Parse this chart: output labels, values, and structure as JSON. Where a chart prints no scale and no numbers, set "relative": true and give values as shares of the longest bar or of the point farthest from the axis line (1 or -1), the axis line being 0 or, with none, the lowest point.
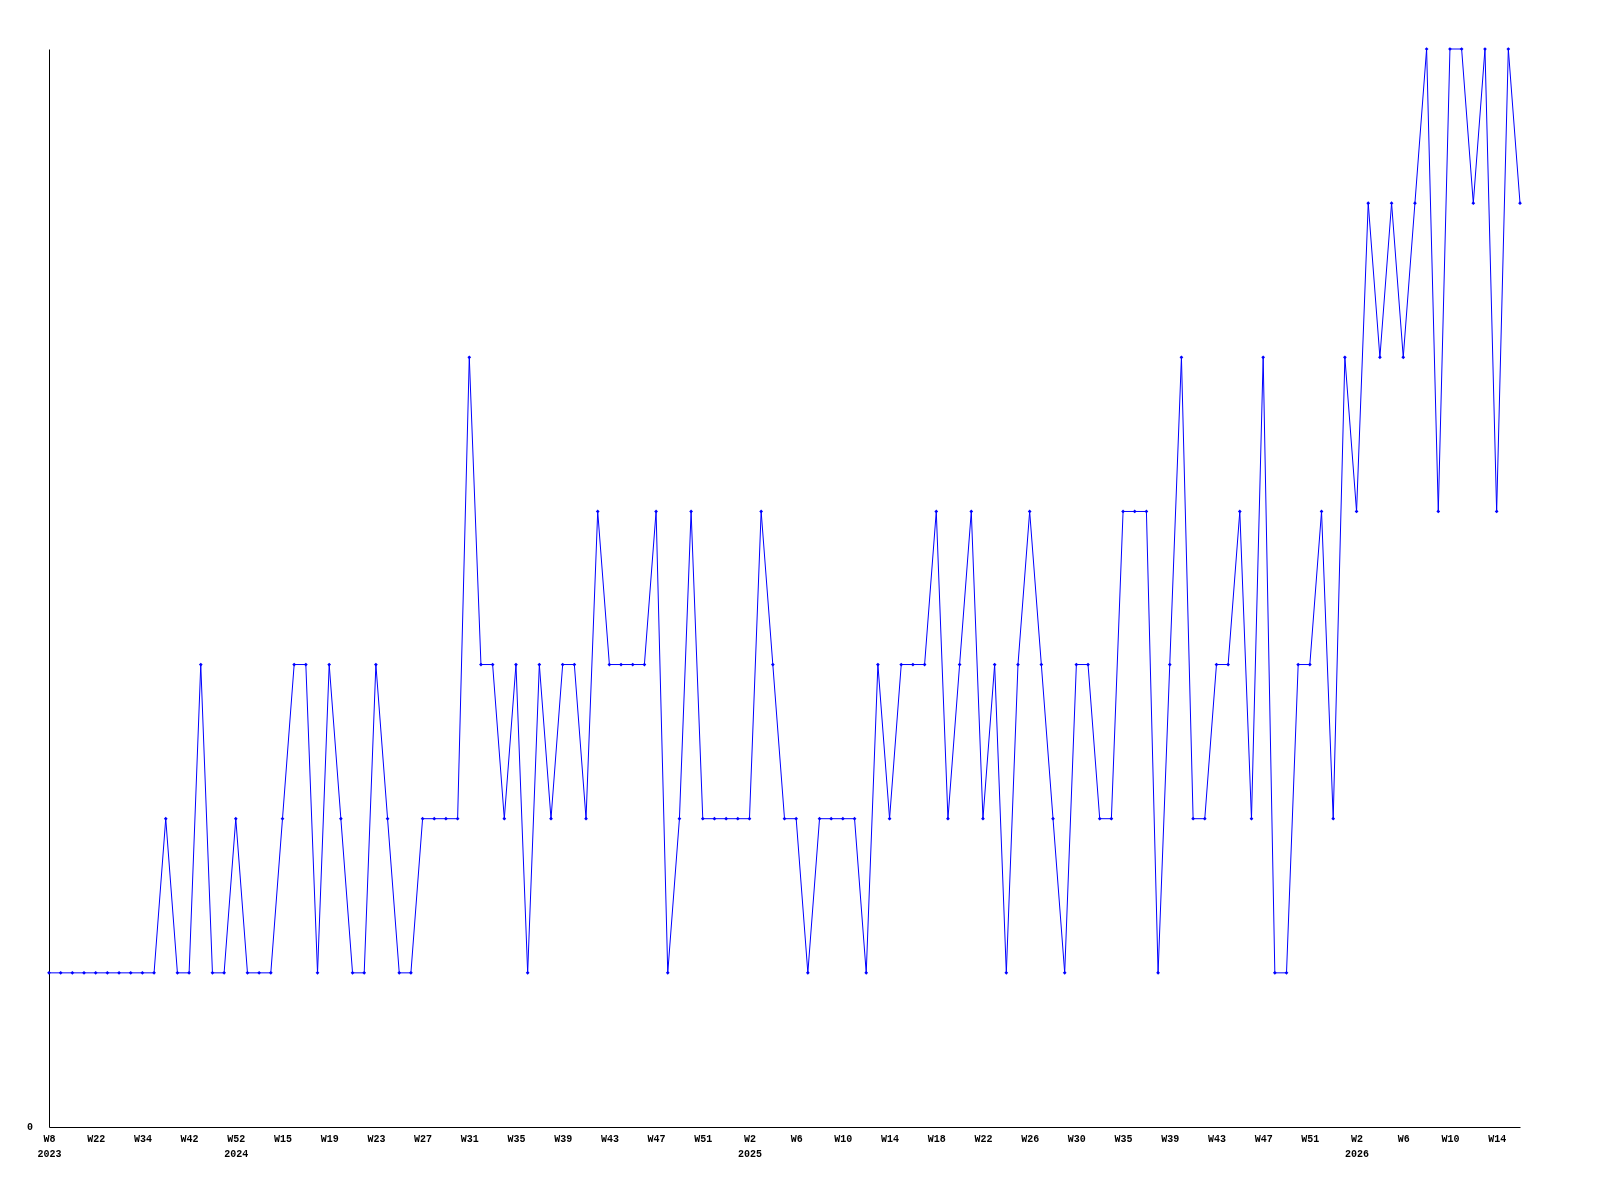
{
  "chart_data": {
    "type": "line",
    "relative": true,
    "color": "#0000ff",
    "marker": "diamond",
    "line_style": "solid",
    "categories": [
      "W8\n2023",
      null,
      null,
      null,
      "W22",
      null,
      null,
      null,
      "W34",
      null,
      null,
      null,
      "W42",
      null,
      null,
      null,
      "W52\n2024",
      null,
      null,
      null,
      "W15",
      null,
      null,
      null,
      "W19",
      null,
      null,
      null,
      "W23",
      null,
      null,
      null,
      "W27",
      null,
      null,
      null,
      "W31",
      null,
      null,
      null,
      "W35",
      null,
      null,
      null,
      "W39",
      null,
      null,
      null,
      "W43",
      null,
      null,
      null,
      "W47",
      null,
      null,
      null,
      "W51",
      null,
      null,
      null,
      "W2\n2025",
      null,
      null,
      null,
      "W6",
      null,
      null,
      null,
      "W10",
      null,
      null,
      null,
      "W14",
      null,
      null,
      null,
      "W18",
      null,
      null,
      null,
      "W22",
      null,
      null,
      null,
      "W26",
      null,
      null,
      null,
      "W30",
      null,
      null,
      null,
      "W35",
      null,
      null,
      null,
      "W39",
      null,
      null,
      null,
      "W43",
      null,
      null,
      null,
      "W47",
      null,
      null,
      null,
      "W51",
      null,
      null,
      null,
      "W2\n2026",
      null,
      null,
      null,
      "W6",
      null,
      null,
      null,
      "W10",
      null,
      null,
      null,
      "W14",
      null,
      null
    ],
    "values": [
      0.143,
      0.143,
      0.143,
      0.143,
      0.143,
      0.143,
      0.143,
      0.143,
      0.143,
      0.143,
      0.286,
      0.143,
      0.143,
      0.429,
      0.143,
      0.143,
      0.286,
      0.143,
      0.143,
      0.143,
      0.286,
      0.429,
      0.429,
      0.143,
      0.429,
      0.286,
      0.143,
      0.143,
      0.429,
      0.286,
      0.143,
      0.143,
      0.286,
      0.286,
      0.286,
      0.286,
      0.714,
      0.429,
      0.429,
      0.286,
      0.429,
      0.143,
      0.429,
      0.286,
      0.429,
      0.429,
      0.286,
      0.571,
      0.429,
      0.429,
      0.429,
      0.429,
      0.571,
      0.143,
      0.286,
      0.571,
      0.286,
      0.286,
      0.286,
      0.286,
      0.286,
      0.571,
      0.429,
      0.286,
      0.286,
      0.143,
      0.286,
      0.286,
      0.286,
      0.286,
      0.143,
      0.429,
      0.286,
      0.429,
      0.429,
      0.429,
      0.571,
      0.286,
      0.429,
      0.571,
      0.286,
      0.429,
      0.143,
      0.429,
      0.571,
      0.429,
      0.286,
      0.143,
      0.429,
      0.429,
      0.286,
      0.286,
      0.571,
      0.571,
      0.571,
      0.143,
      0.429,
      0.714,
      0.286,
      0.286,
      0.429,
      0.429,
      0.571,
      0.286,
      0.714,
      0.143,
      0.143,
      0.429,
      0.429,
      0.571,
      0.286,
      0.714,
      0.571,
      0.857,
      0.714,
      0.857,
      0.714,
      0.857,
      1,
      0.571,
      1,
      1,
      0.857,
      1,
      0.571,
      1,
      0.857
    ],
    "annotations": [
      "0"
    ]
  }
}
